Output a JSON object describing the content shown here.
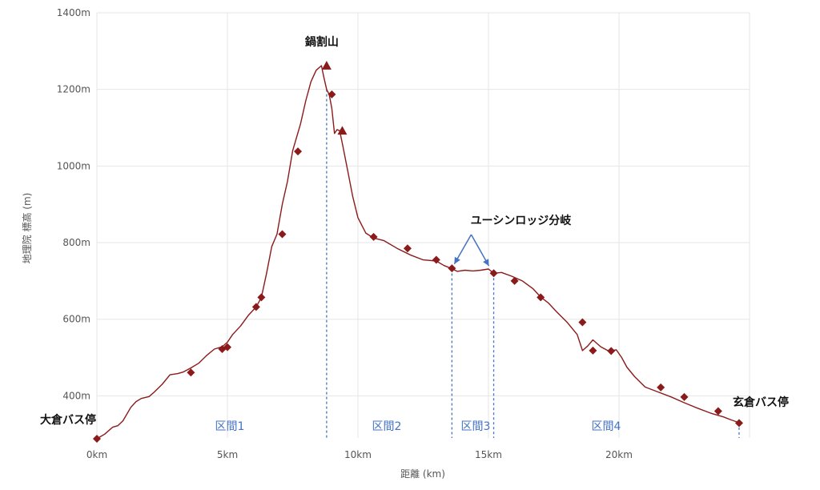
{
  "chart_data": {
    "type": "line",
    "title": "",
    "xlabel": "距離 (km)",
    "ylabel": "地理院 標高 (m)",
    "xlim": [
      0,
      25
    ],
    "ylim": [
      290,
      1400
    ],
    "x_ticks": [
      0,
      5,
      10,
      15,
      20
    ],
    "x_tick_labels": [
      "0km",
      "5km",
      "10km",
      "15km",
      "20km"
    ],
    "y_ticks": [
      400,
      600,
      800,
      1000,
      1200,
      1400
    ],
    "y_tick_labels": [
      "400m",
      "600m",
      "800m",
      "1000m",
      "1200m",
      "1400m"
    ],
    "grid": true,
    "colors": {
      "line": "#8b1a1a",
      "marker": "#8b1a1a",
      "divider": "#4472c4",
      "grid": "#e6e6e6",
      "section_label": "#4472c4"
    },
    "profile": {
      "x": [
        0,
        0.3,
        0.6,
        0.8,
        1.0,
        1.3,
        1.5,
        1.7,
        2.0,
        2.2,
        2.5,
        2.8,
        3.1,
        3.3,
        3.6,
        3.9,
        4.2,
        4.5,
        4.8,
        5.0,
        5.2,
        5.5,
        5.8,
        6.1,
        6.3,
        6.5,
        6.7,
        6.9,
        7.1,
        7.3,
        7.5,
        7.8,
        8.0,
        8.2,
        8.4,
        8.6,
        8.7,
        8.8,
        8.9,
        9.0,
        9.1,
        9.2,
        9.3,
        9.4,
        9.6,
        9.8,
        10.0,
        10.3,
        10.6,
        11.0,
        11.5,
        12.0,
        12.5,
        13.0,
        13.3,
        13.6,
        13.8,
        14.1,
        14.4,
        14.7,
        15.0,
        15.2,
        15.5,
        15.9,
        16.3,
        16.7,
        17.0,
        17.3,
        17.6,
        18.0,
        18.4,
        18.6,
        18.8,
        19.0,
        19.3,
        19.6,
        19.9,
        20.1,
        20.3,
        20.6,
        21.0,
        21.5,
        22.0,
        22.5,
        23.0,
        23.5,
        24.0,
        24.3,
        24.6
      ],
      "y": [
        288,
        300,
        318,
        322,
        335,
        370,
        385,
        393,
        398,
        410,
        430,
        455,
        458,
        462,
        473,
        485,
        505,
        522,
        528,
        540,
        560,
        582,
        610,
        632,
        657,
        720,
        790,
        822,
        900,
        960,
        1040,
        1110,
        1170,
        1220,
        1250,
        1262,
        1230,
        1200,
        1187,
        1150,
        1085,
        1095,
        1092,
        1060,
        990,
        920,
        865,
        825,
        812,
        805,
        785,
        768,
        755,
        752,
        740,
        732,
        725,
        728,
        726,
        728,
        731,
        720,
        722,
        712,
        700,
        680,
        658,
        642,
        620,
        593,
        560,
        518,
        530,
        546,
        528,
        517,
        520,
        500,
        475,
        450,
        423,
        410,
        397,
        382,
        368,
        355,
        345,
        337,
        330
      ]
    },
    "diamond_markers": [
      {
        "x": 0,
        "y": 288
      },
      {
        "x": 3.6,
        "y": 461
      },
      {
        "x": 4.8,
        "y": 522
      },
      {
        "x": 5.0,
        "y": 527
      },
      {
        "x": 6.1,
        "y": 632
      },
      {
        "x": 6.3,
        "y": 657
      },
      {
        "x": 7.1,
        "y": 822
      },
      {
        "x": 7.7,
        "y": 1038
      },
      {
        "x": 9.0,
        "y": 1187
      },
      {
        "x": 10.6,
        "y": 815
      },
      {
        "x": 11.9,
        "y": 785
      },
      {
        "x": 13.0,
        "y": 755
      },
      {
        "x": 13.6,
        "y": 733
      },
      {
        "x": 15.2,
        "y": 720
      },
      {
        "x": 16.0,
        "y": 700
      },
      {
        "x": 17.0,
        "y": 657
      },
      {
        "x": 18.6,
        "y": 592
      },
      {
        "x": 19.0,
        "y": 518
      },
      {
        "x": 19.7,
        "y": 517
      },
      {
        "x": 21.6,
        "y": 422
      },
      {
        "x": 22.5,
        "y": 397
      },
      {
        "x": 23.8,
        "y": 360
      },
      {
        "x": 24.6,
        "y": 329
      }
    ],
    "triangle_markers": [
      {
        "x": 8.8,
        "y": 1262
      },
      {
        "x": 9.4,
        "y": 1092
      }
    ],
    "section_dividers": [
      8.8,
      13.6,
      15.2,
      24.6
    ],
    "annotations": [
      {
        "text": "鍋割山",
        "x": 8.8,
        "y": 1262
      },
      {
        "text": "ユーシンロッジ分岐",
        "x": 14.4,
        "y": 800
      },
      {
        "text": "大倉バス停",
        "x": 0,
        "y": 288
      },
      {
        "text": "玄倉バス停",
        "x": 24.6,
        "y": 329
      }
    ],
    "sections": [
      {
        "label": "区間1",
        "from": 0,
        "to": 8.8
      },
      {
        "label": "区間2",
        "from": 8.8,
        "to": 13.6
      },
      {
        "label": "区間3",
        "from": 13.6,
        "to": 15.2
      },
      {
        "label": "区間4",
        "from": 15.2,
        "to": 24.6
      }
    ]
  }
}
